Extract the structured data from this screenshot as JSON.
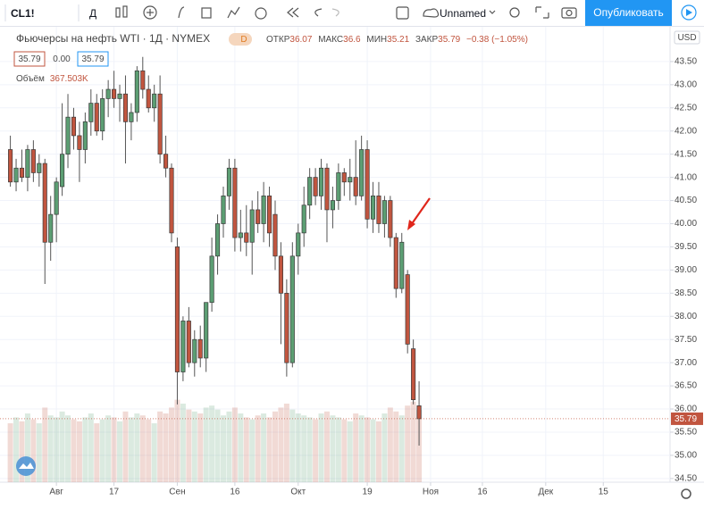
{
  "toolbar": {
    "symbol": "CL1!",
    "interval": "Д",
    "layout": "Unnamed",
    "publish": "Опубликовать"
  },
  "header": {
    "title": "Фьючерсы на нефть WTI · 1Д · NYMEX",
    "badge": "D",
    "open_label": "ОТКР",
    "high_label": "МАКС",
    "low_label": "МИН",
    "close_label": "ЗАКР",
    "change": "−0.38 (−1.05%)"
  },
  "trading": {
    "sell": "35.79",
    "spread": "0.00",
    "buy": "35.79"
  },
  "currency": "USD",
  "chart_data": {
    "type": "candlestick",
    "up_color": "#5c9e73",
    "down_color": "#c1553f",
    "grid": true,
    "categories": [
      null,
      null,
      null,
      null,
      null,
      null,
      null,
      null,
      null,
      null,
      null,
      null,
      null,
      null,
      null,
      null,
      null,
      null,
      null,
      null,
      null,
      null,
      null,
      null,
      null,
      null,
      null,
      null,
      null,
      null,
      null,
      null,
      null,
      null,
      null,
      null,
      null,
      null,
      null,
      null,
      null,
      null,
      null,
      null,
      null,
      null,
      null,
      null,
      null,
      null,
      null,
      null,
      null,
      null,
      null,
      null,
      null,
      null,
      null,
      null,
      null,
      null,
      null,
      null,
      null,
      null,
      null,
      null,
      null,
      null,
      null,
      null
    ],
    "open": [
      41.6,
      40.9,
      41.2,
      41.0,
      41.6,
      41.1,
      41.3,
      39.6,
      40.2,
      40.8,
      41.5,
      42.3,
      41.9,
      41.6,
      42.2,
      42.6,
      42.0,
      42.7,
      42.9,
      42.7,
      42.8,
      42.2,
      42.4,
      43.3,
      42.9,
      42.5,
      42.8,
      41.5,
      41.2,
      39.5,
      36.8,
      37.9,
      37.0,
      37.5,
      37.1,
      38.3,
      39.3,
      40.0,
      40.6,
      41.2,
      39.7,
      39.8,
      39.6,
      40.3,
      40.0,
      40.6,
      40.2,
      39.3,
      38.5,
      37.0,
      39.3,
      39.8,
      40.4,
      41.0,
      40.6,
      41.2,
      40.3,
      40.5,
      41.1,
      40.9,
      41.0,
      40.6,
      41.6,
      40.1,
      40.6,
      40.0,
      40.5,
      39.7,
      38.6,
      38.9,
      37.3,
      36.07
    ],
    "high": [
      41.9,
      41.4,
      41.6,
      41.7,
      41.8,
      41.5,
      41.4,
      40.6,
      41.0,
      42.6,
      42.8,
      42.5,
      42.2,
      42.4,
      42.9,
      42.8,
      42.9,
      43.1,
      43.3,
      43.0,
      43.2,
      42.6,
      43.4,
      43.6,
      43.2,
      43.0,
      43.2,
      41.9,
      41.3,
      39.7,
      38.0,
      38.2,
      37.7,
      37.8,
      38.3,
      39.7,
      40.2,
      40.8,
      41.4,
      41.4,
      40.3,
      40.4,
      40.5,
      40.7,
      40.9,
      40.8,
      40.5,
      39.6,
      38.8,
      39.6,
      40.0,
      40.8,
      41.2,
      41.2,
      41.4,
      41.3,
      40.8,
      41.3,
      41.2,
      41.4,
      41.8,
      41.9,
      41.8,
      40.9,
      40.9,
      40.6,
      40.6,
      39.8,
      39.8,
      39.0,
      37.5,
      36.6
    ],
    "low": [
      40.8,
      40.7,
      40.9,
      40.7,
      40.9,
      40.8,
      38.7,
      39.2,
      39.6,
      40.6,
      41.2,
      41.6,
      40.9,
      41.3,
      41.9,
      41.9,
      41.8,
      42.3,
      42.5,
      42.2,
      41.3,
      41.8,
      42.2,
      42.7,
      42.4,
      42.2,
      41.3,
      41.0,
      39.6,
      36.1,
      36.6,
      36.9,
      36.7,
      36.9,
      36.8,
      38.1,
      38.9,
      39.7,
      40.3,
      39.4,
      39.4,
      39.3,
      38.9,
      39.8,
      39.6,
      39.5,
      39.0,
      37.4,
      36.7,
      36.9,
      38.9,
      39.5,
      40.1,
      40.4,
      40.3,
      39.6,
      39.9,
      40.3,
      40.6,
      40.5,
      40.4,
      40.5,
      39.9,
      39.8,
      39.8,
      39.7,
      39.5,
      38.4,
      38.5,
      37.2,
      36.1,
      35.21
    ],
    "close": [
      40.9,
      41.2,
      41.0,
      41.6,
      41.1,
      41.3,
      39.6,
      40.2,
      40.9,
      41.5,
      42.3,
      41.9,
      41.6,
      42.2,
      42.6,
      42.0,
      42.7,
      42.9,
      42.7,
      42.8,
      42.2,
      42.4,
      43.3,
      42.9,
      42.5,
      42.8,
      41.5,
      41.2,
      39.8,
      36.8,
      37.9,
      37.0,
      37.5,
      37.1,
      38.3,
      39.3,
      40.0,
      40.6,
      41.2,
      39.7,
      39.8,
      39.6,
      40.3,
      40.0,
      40.6,
      39.8,
      39.3,
      38.5,
      37.0,
      39.3,
      39.8,
      40.4,
      41.0,
      40.6,
      41.2,
      40.3,
      40.5,
      41.1,
      40.9,
      41.0,
      40.6,
      41.6,
      40.1,
      40.6,
      40.0,
      40.5,
      39.7,
      38.6,
      39.6,
      37.4,
      36.2,
      35.79
    ],
    "volume": {
      "name": "Объём",
      "last_value_label": "367.503K",
      "values": [
        300,
        330,
        310,
        350,
        320,
        300,
        380,
        340,
        330,
        360,
        340,
        320,
        310,
        330,
        350,
        300,
        320,
        340,
        330,
        310,
        360,
        330,
        350,
        340,
        320,
        300,
        360,
        350,
        380,
        420,
        400,
        370,
        360,
        350,
        380,
        390,
        370,
        340,
        360,
        380,
        350,
        330,
        320,
        340,
        350,
        330,
        360,
        380,
        400,
        370,
        350,
        340,
        330,
        320,
        350,
        360,
        340,
        330,
        320,
        310,
        350,
        340,
        330,
        320,
        310,
        350,
        380,
        360,
        340,
        390,
        410,
        367.503
      ]
    },
    "ylim": [
      34.42,
      44.25
    ],
    "yticks": [
      {
        "value": 34.5,
        "label": "34.50"
      },
      {
        "value": 35,
        "label": "35.00"
      },
      {
        "value": 35.5,
        "label": "35.50"
      },
      {
        "value": 36,
        "label": "36.00"
      },
      {
        "value": 36.5,
        "label": "36.50"
      },
      {
        "value": 37,
        "label": "37.00"
      },
      {
        "value": 37.5,
        "label": "37.50"
      },
      {
        "value": 38,
        "label": "38.00"
      },
      {
        "value": 38.5,
        "label": "38.50"
      },
      {
        "value": 39,
        "label": "39.00"
      },
      {
        "value": 39.5,
        "label": "39.50"
      },
      {
        "value": 40,
        "label": "40.00"
      },
      {
        "value": 40.5,
        "label": "40.50"
      },
      {
        "value": 41,
        "label": "41.00"
      },
      {
        "value": 41.5,
        "label": "41.50"
      },
      {
        "value": 42,
        "label": "42.00"
      },
      {
        "value": 42.5,
        "label": "42.50"
      },
      {
        "value": 43,
        "label": "43.00"
      },
      {
        "value": 43.5,
        "label": "43.50"
      }
    ],
    "xlim": [
      -1.8,
      114.6
    ],
    "xticks": [
      {
        "value": 8,
        "label": "Авг"
      },
      {
        "value": 18,
        "label": "17"
      },
      {
        "value": 29,
        "label": "Сен"
      },
      {
        "value": 39,
        "label": "16"
      },
      {
        "value": 50,
        "label": "Окт"
      },
      {
        "value": 62,
        "label": "19"
      },
      {
        "value": 73,
        "label": "Ноя"
      },
      {
        "value": 82,
        "label": "16"
      },
      {
        "value": 93,
        "label": "Дек"
      },
      {
        "value": 103,
        "label": "15"
      }
    ]
  }
}
